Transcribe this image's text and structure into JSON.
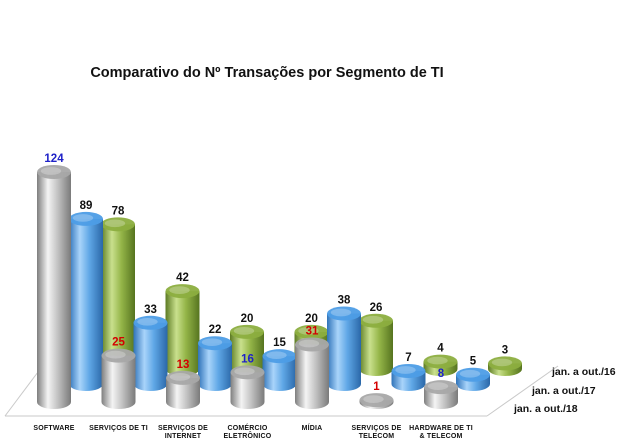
{
  "chart_data": {
    "type": "bar",
    "title": "Comparativo do Nº Transações por Segmento de TI",
    "categories": [
      [
        "SOFTWARE"
      ],
      [
        "SERVIÇOS DE TI"
      ],
      [
        "SERVIÇOS DE",
        "INTERNET"
      ],
      [
        "COMÉRCIO",
        "ELETRÔNICO"
      ],
      [
        "MÍDIA"
      ],
      [
        "SERVIÇOS DE",
        "TELECOM"
      ],
      [
        "HARDWARE  DE TI",
        "& TELECOM"
      ]
    ],
    "series": [
      {
        "name": "jan. a out./18",
        "values": [
          124,
          25,
          13,
          16,
          31,
          1,
          8
        ]
      },
      {
        "name": "jan. a out./17",
        "values": [
          89,
          33,
          22,
          15,
          38,
          7,
          5
        ]
      },
      {
        "name": "jan. a out./16",
        "values": [
          78,
          42,
          20,
          20,
          26,
          4,
          3
        ]
      }
    ],
    "value_label_colors": [
      [
        "#1f22c8",
        "#d40000",
        "#d40000",
        "#1f22c8",
        "#d40000",
        "#d40000",
        "#1f22c8"
      ],
      [
        "#111111",
        "#111111",
        "#111111",
        "#111111",
        "#111111",
        "#111111",
        "#111111"
      ],
      [
        "#111111",
        "#111111",
        "#111111",
        "#111111",
        "#111111",
        "#111111",
        "#111111"
      ]
    ],
    "series_colors": [
      "#a8a8a8",
      "#4d9de6",
      "#8cae3f"
    ],
    "ylim": [
      0,
      124
    ]
  }
}
